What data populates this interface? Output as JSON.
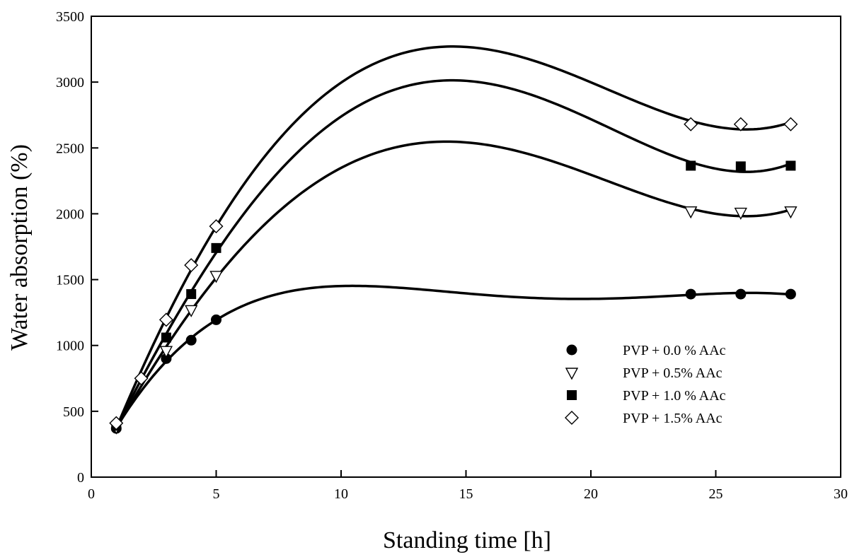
{
  "chart_data": {
    "type": "scatter",
    "title": "",
    "xlabel": "Standing time [h]",
    "ylabel": "Water absorption (%)",
    "xlim": [
      0,
      30
    ],
    "ylim": [
      0,
      3500
    ],
    "xticks": [
      0,
      5,
      10,
      15,
      20,
      25,
      30
    ],
    "yticks": [
      0,
      500,
      1000,
      1500,
      2000,
      2500,
      3000,
      3500
    ],
    "grid": false,
    "legend_position": "lower-right",
    "series": [
      {
        "name": "PVP + 0.0 % AAc",
        "marker": "filled-circle",
        "color": "#000000",
        "x": [
          1,
          3,
          4,
          5,
          24,
          26,
          28
        ],
        "y": [
          370,
          900,
          1040,
          1195,
          1390,
          1390,
          1390
        ],
        "fit_curve": true
      },
      {
        "name": "PVP + 0.5% AAc",
        "marker": "open-triangle-down",
        "color": "#000000",
        "x": [
          1,
          3,
          4,
          5,
          24,
          26,
          28
        ],
        "y": [
          380,
          960,
          1270,
          1530,
          2020,
          2010,
          2020
        ],
        "fit_curve": true
      },
      {
        "name": "PVP + 1.0 % AAc",
        "marker": "filled-square",
        "color": "#000000",
        "x": [
          1,
          3,
          4,
          5,
          24,
          26,
          28
        ],
        "y": [
          390,
          1060,
          1390,
          1740,
          2365,
          2360,
          2365
        ],
        "fit_curve": true
      },
      {
        "name": "PVP + 1.5%  AAc",
        "marker": "open-diamond",
        "color": "#000000",
        "x": [
          1,
          2,
          3,
          4,
          5,
          24,
          26,
          28
        ],
        "y": [
          410,
          750,
          1195,
          1610,
          1905,
          2680,
          2680,
          2680
        ],
        "fit_curve": true
      }
    ]
  }
}
